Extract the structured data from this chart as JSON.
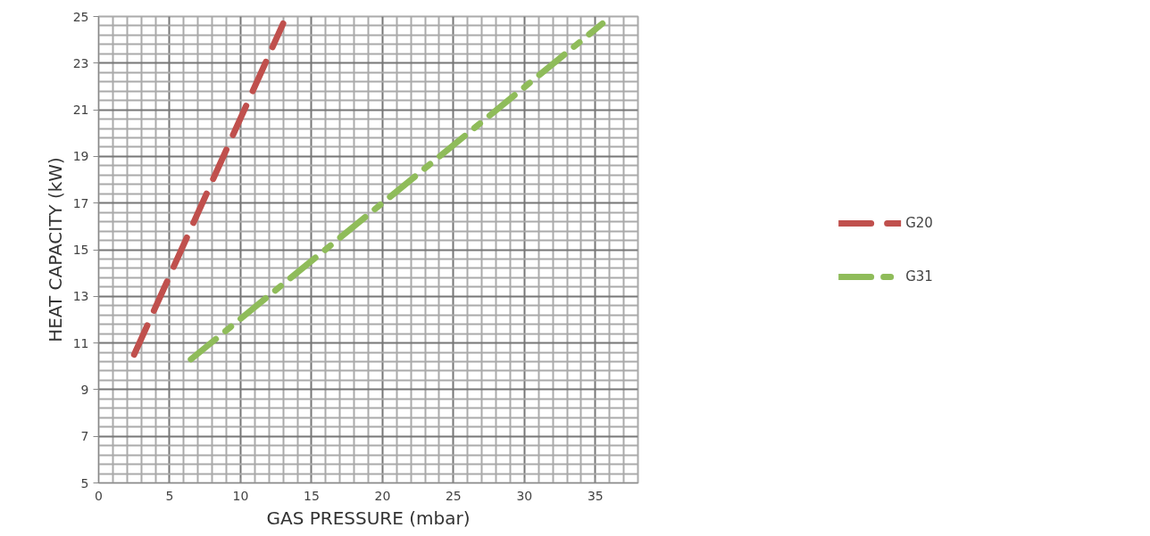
{
  "chart_data": {
    "type": "line",
    "xlabel": "GAS PRESSURE (mbar)",
    "ylabel": "HEAT CAPACITY (kW)",
    "xlim": [
      0,
      38
    ],
    "xticks": [
      0,
      5,
      10,
      15,
      20,
      25,
      30,
      35
    ],
    "ylim": [
      5,
      25
    ],
    "yticks": [
      5,
      7,
      9,
      11,
      13,
      15,
      17,
      19,
      21,
      23,
      25
    ],
    "grid": true,
    "legend": "right",
    "series": [
      {
        "name": "G20",
        "color": "#c0504d",
        "x": [
          2.5,
          13
        ],
        "values": [
          10.5,
          24.7
        ],
        "line_style": "dashed"
      },
      {
        "name": "G31",
        "color": "#8fbc5a",
        "x": [
          6.5,
          35.5
        ],
        "values": [
          10.3,
          24.7
        ],
        "line_style": "dashdot"
      }
    ]
  }
}
